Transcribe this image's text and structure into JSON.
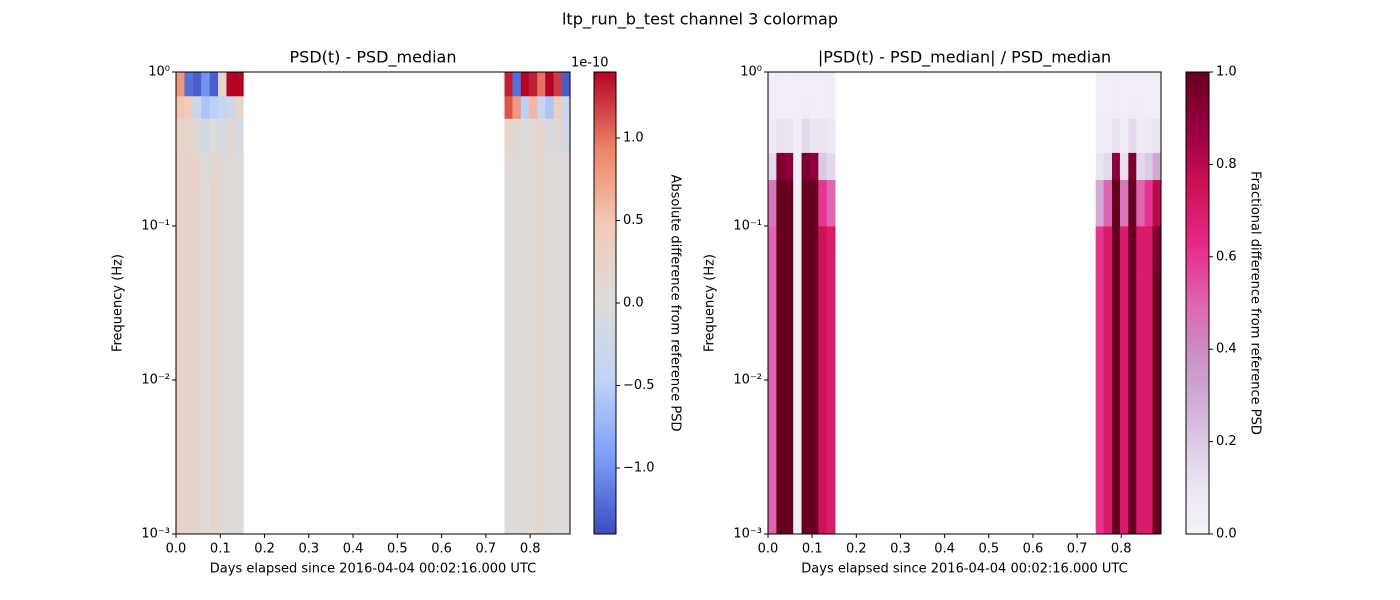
{
  "figure_title": "ltp_run_b_test channel 3 colormap",
  "chart_data": [
    {
      "type": "heatmap",
      "title": "PSD(t) - PSD_median",
      "xlabel": "Days elapsed since 2016-04-04 00:02:16.000 UTC",
      "ylabel": "Frequency (Hz)",
      "colorbar_label": "Absolute difference from reference PSD",
      "colorbar_offset": "1e-10",
      "colormap": [
        "#3b4cc0",
        "#7b9ff9",
        "#c0d4f5",
        "#dddcdc",
        "#f2cbb7",
        "#ee8468",
        "#b40426"
      ],
      "clim": [
        -1.4e-10,
        1.4e-10
      ],
      "cticks": [
        {
          "value": -1e-10,
          "label": "−1.0"
        },
        {
          "value": -5e-11,
          "label": "−0.5"
        },
        {
          "value": 0,
          "label": "0.0"
        },
        {
          "value": 5e-11,
          "label": "0.5"
        },
        {
          "value": 1e-10,
          "label": "1.0"
        }
      ],
      "xlim": [
        0,
        0.89
      ],
      "xticks": [
        {
          "value": 0,
          "label": "0.0"
        },
        0.1,
        0.2,
        0.3,
        0.4,
        0.5,
        0.6,
        0.7,
        0.8
      ],
      "y_scale": "log",
      "ylim": [
        0.001,
        1
      ],
      "yticks": [
        {
          "value": 0.001,
          "label": "10⁻³"
        },
        {
          "value": 0.01,
          "label": "10⁻²"
        },
        {
          "value": 0.1,
          "label": "10⁻¹"
        },
        {
          "value": 1,
          "label": "10⁰"
        }
      ],
      "y_edges": [
        0.001,
        0.05,
        0.1,
        0.2,
        0.3,
        0.5,
        0.7,
        1.0
      ],
      "blocks": [
        {
          "x_edges": [
            0,
            0.019,
            0.038,
            0.057,
            0.076,
            0.095,
            0.114,
            0.133,
            0.152
          ],
          "z": [
            [
              2.5e-11,
              2.5e-11,
              2.5e-11,
              2.5e-11,
              3e-11,
              5e-11,
              8e-11
            ],
            [
              2.5e-11,
              2.5e-11,
              2.5e-11,
              2.5e-11,
              2e-11,
              4e-11,
              -1.2e-10
            ],
            [
              2e-11,
              2e-11,
              2e-11,
              2e-11,
              1e-11,
              -3e-11,
              -1.3e-10
            ],
            [
              3e-12,
              3e-12,
              3e-12,
              0,
              -2e-11,
              -6e-11,
              -1e-10
            ],
            [
              2e-11,
              2e-11,
              2e-11,
              1.5e-11,
              0,
              -5e-11,
              -1.3e-10
            ],
            [
              5e-12,
              5e-12,
              5e-12,
              5e-12,
              -1e-11,
              -4e-11,
              2e-11
            ],
            [
              5e-12,
              5e-12,
              5e-12,
              5e-12,
              1e-11,
              -3e-11,
              1.4e-10
            ],
            [
              3e-12,
              3e-12,
              3e-12,
              3e-12,
              -1e-11,
              2e-11,
              1.4e-10
            ]
          ]
        },
        {
          "x_edges": [
            0.742,
            0.76,
            0.779,
            0.797,
            0.816,
            0.834,
            0.853,
            0.871,
            0.89
          ],
          "z": [
            [
              3e-12,
              3e-12,
              3e-12,
              5e-12,
              2e-11,
              1.1e-10,
              1.3e-10
            ],
            [
              3e-12,
              3e-12,
              3e-12,
              5e-12,
              1e-11,
              8e-11,
              -1.2e-10
            ],
            [
              5e-12,
              5e-12,
              5e-12,
              5e-12,
              0,
              -5e-11,
              1.4e-10
            ],
            [
              3e-12,
              3e-12,
              3e-12,
              3e-12,
              1e-11,
              6e-11,
              1.3e-10
            ],
            [
              2e-11,
              2e-11,
              2e-11,
              2e-11,
              2e-11,
              -4e-11,
              1e-10
            ],
            [
              3e-12,
              3e-12,
              3e-12,
              3e-12,
              -1e-11,
              -6e-11,
              1.4e-10
            ],
            [
              3e-12,
              3e-12,
              3e-12,
              3e-12,
              1e-11,
              4e-11,
              1.2e-10
            ],
            [
              3e-12,
              3e-12,
              3e-12,
              3e-12,
              -2e-11,
              -3e-11,
              -1.3e-10
            ]
          ]
        }
      ]
    },
    {
      "type": "heatmap",
      "title": "|PSD(t) - PSD_median| / PSD_median",
      "xlabel": "Days elapsed since 2016-04-04 00:02:16.000 UTC",
      "ylabel": "Frequency (Hz)",
      "colorbar_label": "Fractional difference from reference PSD",
      "colormap": [
        "#f7f4f9",
        "#e7e1ef",
        "#d4b9da",
        "#c994c7",
        "#df65b0",
        "#e7298a",
        "#ce1256",
        "#980043",
        "#67001f"
      ],
      "clim": [
        0,
        1
      ],
      "cticks": [
        {
          "value": 0,
          "label": "0.0"
        },
        0.2,
        0.4,
        0.6,
        0.8,
        {
          "value": 1,
          "label": "1.0"
        }
      ],
      "xlim": [
        0,
        0.89
      ],
      "xticks": [
        {
          "value": 0,
          "label": "0.0"
        },
        0.1,
        0.2,
        0.3,
        0.4,
        0.5,
        0.6,
        0.7,
        0.8
      ],
      "y_scale": "log",
      "ylim": [
        0.001,
        1
      ],
      "yticks": [
        {
          "value": 0.001,
          "label": "10⁻³"
        },
        {
          "value": 0.01,
          "label": "10⁻²"
        },
        {
          "value": 0.1,
          "label": "10⁻¹"
        },
        {
          "value": 1,
          "label": "10⁰"
        }
      ],
      "y_edges": [
        0.001,
        0.05,
        0.1,
        0.2,
        0.3,
        0.5,
        0.7,
        1.0
      ],
      "blocks": [
        {
          "x_edges": [
            0,
            0.019,
            0.038,
            0.057,
            0.076,
            0.095,
            0.114,
            0.133,
            0.152
          ],
          "z": [
            [
              0.5,
              0.5,
              0.45,
              0.15,
              0.06,
              0.05,
              0.05
            ],
            [
              1,
              1,
              1,
              0.95,
              0.12,
              0.05,
              0.04
            ],
            [
              1,
              1,
              1,
              0.9,
              0.1,
              0.05,
              0.04
            ],
            [
              0.03,
              0.03,
              0.03,
              0.03,
              0.04,
              0.05,
              0.05
            ],
            [
              1,
              1,
              1,
              0.95,
              0.15,
              0.06,
              0.05
            ],
            [
              1,
              1,
              1,
              0.9,
              0.1,
              0.05,
              0.04
            ],
            [
              0.75,
              0.75,
              0.6,
              0.2,
              0.1,
              0.05,
              0.05
            ],
            [
              0.7,
              0.7,
              0.5,
              0.15,
              0.08,
              0.05,
              0.05
            ]
          ]
        },
        {
          "x_edges": [
            0.742,
            0.76,
            0.779,
            0.797,
            0.816,
            0.834,
            0.853,
            0.871,
            0.89
          ],
          "z": [
            [
              0.6,
              0.6,
              0.3,
              0.1,
              0.05,
              0.05,
              0.05
            ],
            [
              0.7,
              0.7,
              0.5,
              0.15,
              0.06,
              0.05,
              0.05
            ],
            [
              1,
              1,
              1,
              0.9,
              0.12,
              0.06,
              0.05
            ],
            [
              0.7,
              0.7,
              0.45,
              0.12,
              0.06,
              0.05,
              0.05
            ],
            [
              1,
              1,
              1,
              0.95,
              0.15,
              0.06,
              0.05
            ],
            [
              0.7,
              0.7,
              0.5,
              0.15,
              0.06,
              0.05,
              0.05
            ],
            [
              0.7,
              0.7,
              0.6,
              0.2,
              0.08,
              0.05,
              0.05
            ],
            [
              1,
              0.95,
              0.8,
              0.3,
              0.1,
              0.05,
              0.05
            ]
          ]
        }
      ]
    }
  ]
}
